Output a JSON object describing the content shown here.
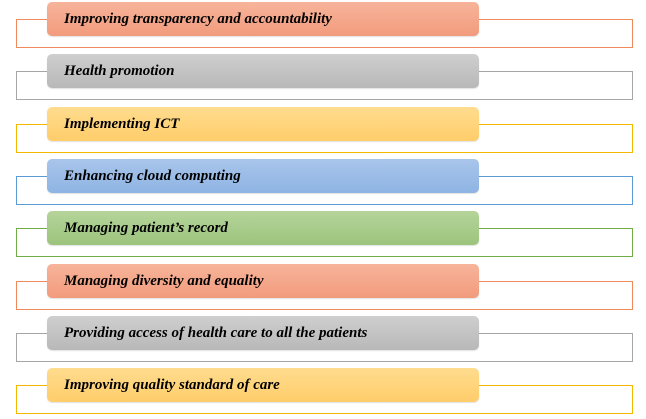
{
  "items": [
    {
      "label": "Improving transparency and accountability",
      "fill_top": "#f7b49a",
      "fill_bottom": "#f29b7d",
      "border": "#f08a5d"
    },
    {
      "label": "Health promotion",
      "fill_top": "#cfcfcf",
      "fill_bottom": "#b8b8b8",
      "border": "#a6a6a6"
    },
    {
      "label": "Implementing ICT",
      "fill_top": "#ffdc8f",
      "fill_bottom": "#ffcd6a",
      "border": "#f5b800"
    },
    {
      "label": "Enhancing cloud computing",
      "fill_top": "#a9c5eb",
      "fill_bottom": "#8eb4e3",
      "border": "#5b9bd5"
    },
    {
      "label": "Managing patient’s record",
      "fill_top": "#b5d49a",
      "fill_bottom": "#9cc47d",
      "border": "#70ad47"
    },
    {
      "label": "Managing diversity and equality",
      "fill_top": "#f7b49a",
      "fill_bottom": "#f29b7d",
      "border": "#f08a5d"
    },
    {
      "label": "Providing access of health care to all the patients",
      "fill_top": "#cfcfcf",
      "fill_bottom": "#b8b8b8",
      "border": "#a6a6a6"
    },
    {
      "label": "Improving quality standard of care",
      "fill_top": "#ffdc8f",
      "fill_bottom": "#ffcd6a",
      "border": "#f5b800"
    }
  ]
}
